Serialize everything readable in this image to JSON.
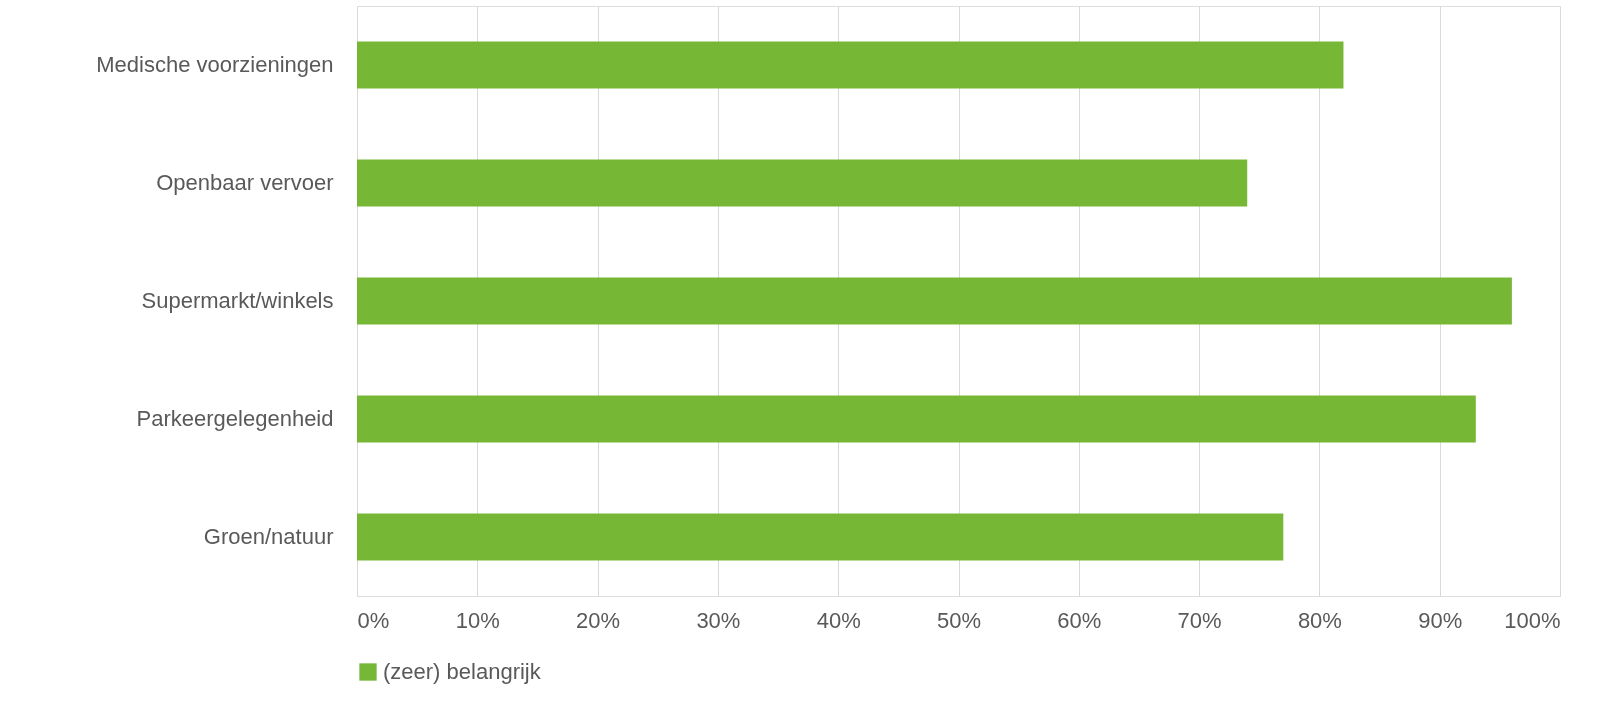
{
  "chart_data": {
    "type": "bar",
    "orientation": "horizontal",
    "categories": [
      "Medische voorzieningen",
      "Openbaar vervoer",
      "Supermarkt/winkels",
      "Parkeergelegenheid",
      "Groen/natuur"
    ],
    "series": [
      {
        "name": "(zeer) belangrijk",
        "color": "#76b736",
        "values": [
          82,
          74,
          96,
          93,
          77
        ]
      }
    ],
    "xlim": [
      0,
      100
    ],
    "xticks": [
      {
        "value": 0,
        "label": "0%"
      },
      {
        "value": 10,
        "label": "10%"
      },
      {
        "value": 20,
        "label": "20%"
      },
      {
        "value": 30,
        "label": "30%"
      },
      {
        "value": 40,
        "label": "40%"
      },
      {
        "value": 50,
        "label": "50%"
      },
      {
        "value": 60,
        "label": "60%"
      },
      {
        "value": 70,
        "label": "70%"
      },
      {
        "value": 80,
        "label": "80%"
      },
      {
        "value": 90,
        "label": "90%"
      },
      {
        "value": 100,
        "label": "100%"
      }
    ],
    "grid": "x",
    "legend": "bottom"
  }
}
